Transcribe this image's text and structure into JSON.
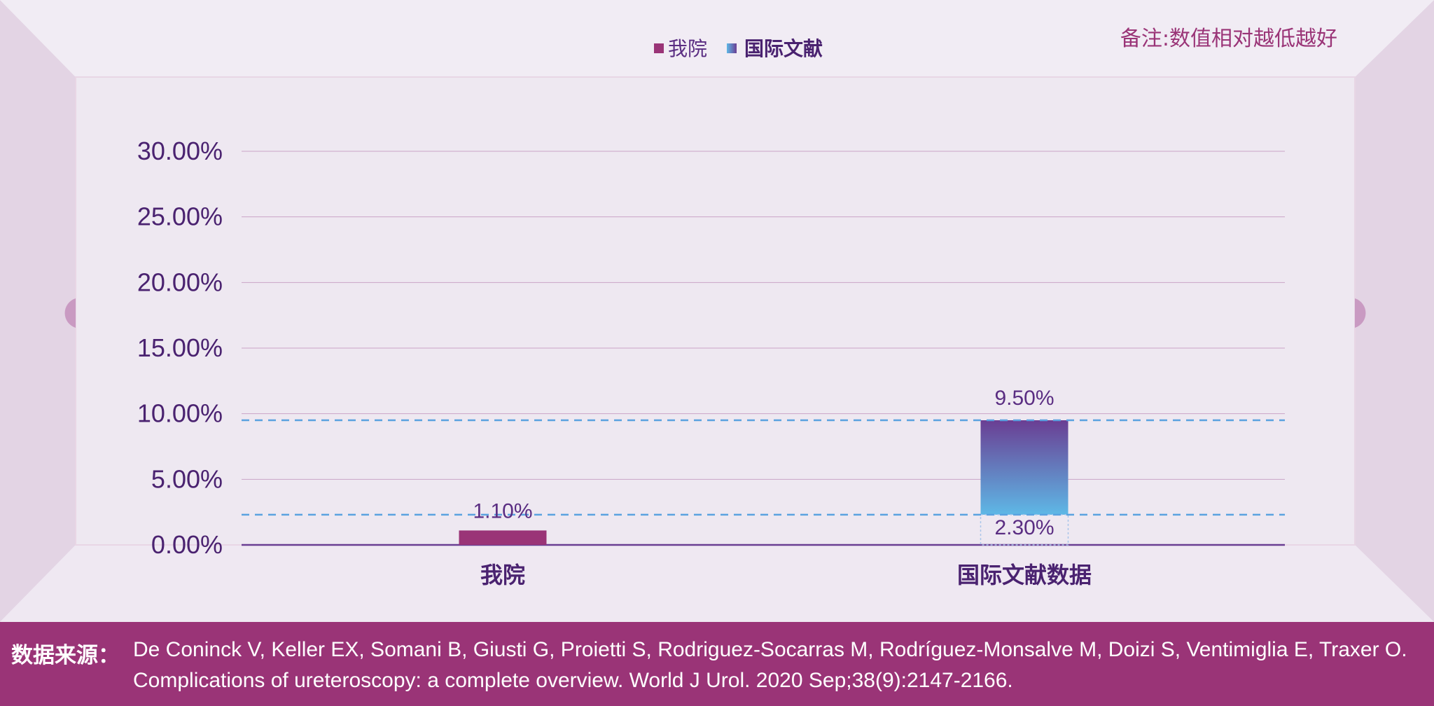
{
  "note": "备注:数值相对越低越好",
  "legend": [
    {
      "label": "我院",
      "color": "#9a3477"
    },
    {
      "label": "国际文献",
      "color_top": "#6a3e93",
      "color_bottom": "#5eb8e6"
    }
  ],
  "source": {
    "label": "数据来源：",
    "text": "De Coninck V, Keller EX, Somani B, Giusti G, Proietti S, Rodriguez-Socarras M, Rodríguez-Monsalve M, Doizi S, Ventimiglia E, Traxer O. Complications of ureteroscopy: a complete overview. World J Urol. 2020 Sep;38(9):2147-2166."
  },
  "colors": {
    "accent": "#9a3477",
    "text": "#4a2270",
    "grid": "#c9a3c6",
    "reference_line": "#5aa2e0",
    "bar_range_top": "#6a3e93",
    "bar_range_bottom": "#5eb8e6"
  },
  "chart_data": {
    "type": "bar",
    "categories": [
      "我院",
      "国际文献数据"
    ],
    "ylim": [
      0,
      30
    ],
    "yticks": [
      0,
      5,
      10,
      15,
      20,
      25,
      30
    ],
    "ytick_labels": [
      "0.00%",
      "5.00%",
      "10.00%",
      "15.00%",
      "20.00%",
      "25.00%",
      "30.00%"
    ],
    "series": [
      {
        "name": "我院",
        "type": "bar",
        "category": "我院",
        "value": 1.1,
        "label": "1.10%"
      },
      {
        "name": "国际文献",
        "type": "range",
        "category": "国际文献数据",
        "low": 2.3,
        "high": 9.5,
        "low_label": "2.30%",
        "high_label": "9.50%"
      }
    ],
    "reference_lines": [
      9.5,
      2.3
    ],
    "grid": true,
    "legend_position": "top-center",
    "xlabel": "",
    "ylabel": ""
  }
}
